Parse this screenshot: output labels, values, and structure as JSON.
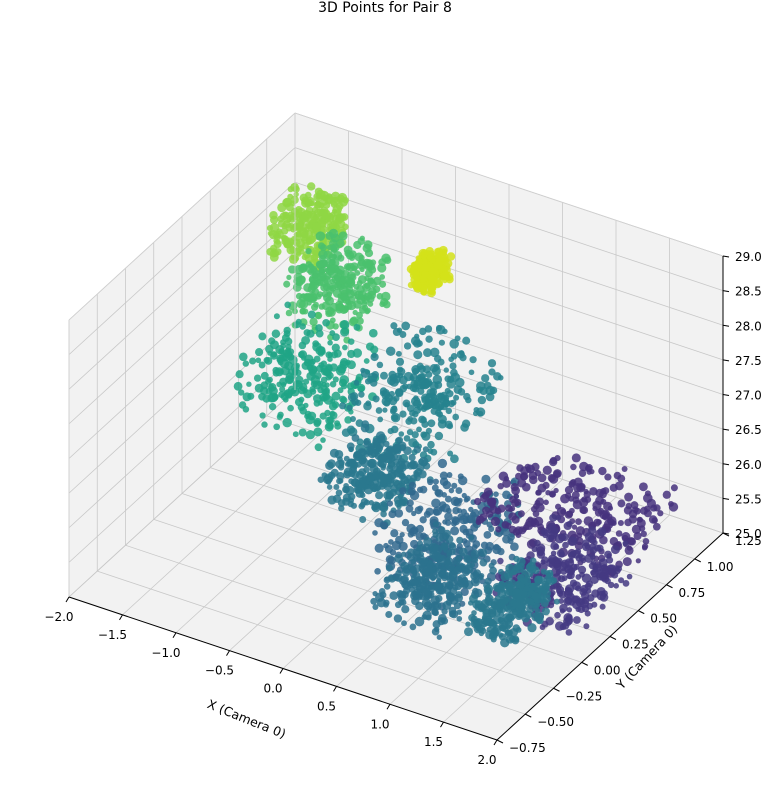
{
  "chart_data": {
    "type": "scatter",
    "projection": "3d",
    "title": "3D Points for Pair 8",
    "xlabel": "X (Camera 0)",
    "ylabel": "Y (Camera 0)",
    "zlabel": "",
    "xlim": [
      -2.0,
      2.0
    ],
    "ylim": [
      -0.75,
      1.25
    ],
    "zlim": [
      25.0,
      29.0
    ],
    "x_ticks": [
      "−2.0",
      "−1.5",
      "−1.0",
      "−0.5",
      "0.0",
      "0.5",
      "1.0",
      "1.5",
      "2.0"
    ],
    "y_ticks": [
      "−0.75",
      "−0.50",
      "−0.25",
      "0.00",
      "0.25",
      "0.50",
      "0.75",
      "1.00",
      "1.25"
    ],
    "z_ticks": [
      "25.0",
      "25.5",
      "26.0",
      "26.5",
      "27.0",
      "27.5",
      "28.0",
      "28.5",
      "29.0"
    ],
    "grid": true,
    "colormap": "viridis",
    "color_by": "depth (Z)",
    "pane_color": "#f2f2f2",
    "clusters": [
      {
        "x": [
          -1.85,
          -1.35
        ],
        "y": [
          0.85,
          1.15
        ],
        "z": [
          27.6,
          28.3
        ],
        "color": "#8fd744"
      },
      {
        "x": [
          -1.4,
          -0.8
        ],
        "y": [
          0.55,
          1.0
        ],
        "z": [
          27.3,
          28.1
        ],
        "color": "#4ac16d"
      },
      {
        "x": [
          -1.2,
          -0.35
        ],
        "y": [
          -0.05,
          0.45
        ],
        "z": [
          26.9,
          27.9
        ],
        "color": "#20a486"
      },
      {
        "x": [
          -0.6,
          0.3
        ],
        "y": [
          0.25,
          0.95
        ],
        "z": [
          26.3,
          27.4
        ],
        "color": "#26828e"
      },
      {
        "x": [
          -0.3,
          0.35
        ],
        "y": [
          -0.15,
          0.25
        ],
        "z": [
          26.3,
          26.9
        ],
        "color": "#2a788e"
      },
      {
        "x": [
          0.3,
          1.2
        ],
        "y": [
          -0.35,
          0.35
        ],
        "z": [
          25.8,
          26.7
        ],
        "color": "#31688e"
      },
      {
        "x": [
          0.7,
          1.35
        ],
        "y": [
          -0.65,
          -0.1
        ],
        "z": [
          25.9,
          26.6
        ],
        "color": "#2c728e"
      },
      {
        "x": [
          0.3,
          1.7
        ],
        "y": [
          0.6,
          1.2
        ],
        "z": [
          25.1,
          25.6
        ],
        "color": "#46337e"
      },
      {
        "x": [
          1.2,
          1.95
        ],
        "y": [
          -0.05,
          0.5
        ],
        "z": [
          25.3,
          26.0
        ],
        "color": "#443a83"
      },
      {
        "x": [
          1.55,
          1.95
        ],
        "y": [
          -0.6,
          -0.15
        ],
        "z": [
          26.0,
          26.6
        ],
        "color": "#2a788e"
      },
      {
        "x": [
          -0.3,
          -0.1
        ],
        "y": [
          0.65,
          0.85
        ],
        "z": [
          28.2,
          28.6
        ],
        "color": "#d4e21a"
      }
    ]
  }
}
